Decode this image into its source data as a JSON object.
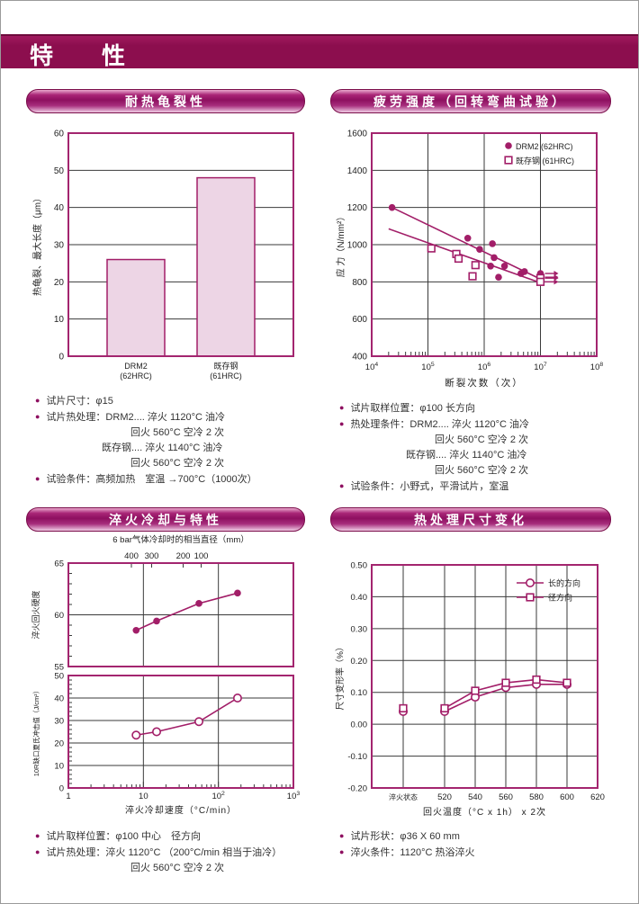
{
  "page": {
    "header_title": "特　性"
  },
  "colors": {
    "brand_dark": "#8C0E4E",
    "pill_mid": "#8E1060",
    "pill_light": "#E9A9CD",
    "series": "#A21E68",
    "plot_border": "#A3256F",
    "bar_fill": "#EDD5E5",
    "grid": "#3a3a3a",
    "text": "#2b2b2b"
  },
  "panels": {
    "heat_crack": {
      "title": "耐热龟裂性",
      "bullets": [
        {
          "b": 1,
          "i": 0,
          "t": "试片尺寸：φ15"
        },
        {
          "b": 1,
          "i": 0,
          "t": "试片热处理：DRM2.... 淬火 1120°C 油冷"
        },
        {
          "b": 0,
          "i": 2,
          "t": "回火  560°C 空冷 2 次"
        },
        {
          "b": 0,
          "i": 1,
          "t": "既存钢.... 淬火 1140°C 油冷"
        },
        {
          "b": 0,
          "i": 2,
          "t": "回火  560°C 空冷 2 次"
        },
        {
          "b": 1,
          "i": 0,
          "t": "试验条件：高频加热　室温 →700°C（1000次）"
        }
      ]
    },
    "fatigue": {
      "title": "疲劳强度（回转弯曲试验）",
      "bullets": [
        {
          "b": 1,
          "i": 0,
          "t": "试片取样位置：φ100 长方向"
        },
        {
          "b": 1,
          "i": 0,
          "t": "热处理条件：DRM2.... 淬火 1120°C 油冷"
        },
        {
          "b": 0,
          "i": 2,
          "t": "回火  560°C 空冷 2 次"
        },
        {
          "b": 0,
          "i": 1,
          "t": "既存钢.... 淬火 1140°C 油冷"
        },
        {
          "b": 0,
          "i": 2,
          "t": "回火  560°C 空冷 2 次"
        },
        {
          "b": 1,
          "i": 0,
          "t": "试验条件：小野式，平滑试片，室温"
        }
      ]
    },
    "quench": {
      "title": "淬火冷却与特性",
      "bullets": [
        {
          "b": 1,
          "i": 0,
          "t": "试片取样位置：φ100 中心　径方向"
        },
        {
          "b": 1,
          "i": 0,
          "t": "试片热处理：淬火 1120°C （200°C/min 相当于油冷）"
        },
        {
          "b": 0,
          "i": 2,
          "t": "回火  560°C 空冷 2 次"
        }
      ]
    },
    "dimension": {
      "title": "热处理尺寸变化",
      "bullets": [
        {
          "b": 1,
          "i": 0,
          "t": "试片形状：φ36 X 60 mm"
        },
        {
          "b": 1,
          "i": 0,
          "t": "淬火条件：1120°C 热浴淬火"
        }
      ]
    }
  },
  "chart_data": [
    {
      "id": "heat_crack_bar",
      "type": "bar",
      "categories": [
        [
          "DRM2",
          "(62HRC)"
        ],
        [
          "既存钢",
          "(61HRC)"
        ]
      ],
      "values": [
        26,
        48
      ],
      "ylabel": "热龟裂、最大长度（μm）",
      "ylim": [
        0,
        60
      ],
      "ytick": 10,
      "grid": true
    },
    {
      "id": "fatigue_sn",
      "type": "scatter",
      "xscale": "log",
      "xlim": [
        10000,
        100000000
      ],
      "xticks": [
        {
          "t": "10",
          "e": "4"
        },
        {
          "t": "10",
          "e": "5"
        },
        {
          "t": "10",
          "e": "6"
        },
        {
          "t": "10",
          "e": "7"
        },
        {
          "t": "10",
          "e": "8"
        }
      ],
      "ylim": [
        400,
        1600
      ],
      "ytick": 200,
      "xlabel": "断裂次数（次）",
      "ylabel": "应 力（N/mm²）",
      "legend_position": "top-right",
      "series": [
        {
          "name": "DRM2 (62HRC)",
          "marker": "filled-circle",
          "points": [
            [
              23000,
              1200
            ],
            [
              510000,
              1035
            ],
            [
              830000,
              975
            ],
            [
              1400000,
              1005
            ],
            [
              1500000,
              930
            ],
            [
              1300000,
              885
            ],
            [
              2300000,
              885
            ],
            [
              1800000,
              825
            ],
            [
              4500000,
              845
            ],
            [
              5200000,
              855
            ],
            [
              10000000,
              845
            ],
            [
              10000000,
              825
            ]
          ],
          "runout_points": [
            [
              10000000,
              845
            ],
            [
              10000000,
              825
            ]
          ],
          "trend": [
            [
              23000,
              1200
            ],
            [
              10000000,
              815
            ]
          ]
        },
        {
          "name": "既存钢 (61HRC)",
          "marker": "open-square",
          "points": [
            [
              115000,
              980
            ],
            [
              320000,
              950
            ],
            [
              350000,
              925
            ],
            [
              700000,
              890
            ],
            [
              620000,
              830
            ],
            [
              10000000,
              820
            ],
            [
              10000000,
              800
            ]
          ],
          "runout_points": [
            [
              10000000,
              820
            ],
            [
              10000000,
              800
            ]
          ],
          "trend": [
            [
              20000,
              1085
            ],
            [
              10000000,
              795
            ]
          ]
        }
      ]
    },
    {
      "id": "quench_cooling",
      "type": "line-dual",
      "top_axis": {
        "title": "6 bar气体冷却时的相当直径（mm）",
        "ticks": [
          {
            "label": "400",
            "f": 0.28
          },
          {
            "label": "300",
            "f": 0.37
          },
          {
            "label": "200",
            "f": 0.51
          },
          {
            "label": "100",
            "f": 0.59
          }
        ]
      },
      "xscale": "log",
      "xlim": [
        1,
        1000
      ],
      "xticks": [
        {
          "t": "1"
        },
        {
          "t": "10"
        },
        {
          "t": "10",
          "e": "2"
        },
        {
          "t": "10",
          "e": "3"
        }
      ],
      "xlabel": "淬火冷却速度（°C/min）",
      "subplots": [
        {
          "ylabel": "淬火回火硬度",
          "ylim": [
            55,
            65
          ],
          "yticks": [
            55,
            60,
            65
          ],
          "grid_y": [
            60
          ],
          "marker": "filled-circle",
          "x": [
            8,
            15,
            55,
            180
          ],
          "y": [
            58.5,
            59.4,
            61.1,
            62.1
          ]
        },
        {
          "ylabel": "10R缺口夏氏冲击值（J/cm²）",
          "ylim": [
            0,
            50
          ],
          "yticks": [
            0,
            10,
            20,
            30,
            40,
            50
          ],
          "grid_y": [
            10,
            20,
            30,
            40
          ],
          "marker": "open-circle",
          "x": [
            8,
            15,
            55,
            180
          ],
          "y": [
            23.5,
            25,
            29.5,
            40
          ]
        }
      ]
    },
    {
      "id": "dimension_change",
      "type": "line-category",
      "categories": [
        "淬火状态",
        "520",
        "540",
        "560",
        "580",
        "600",
        "620"
      ],
      "ylim": [
        -0.2,
        0.5
      ],
      "ytick": 0.1,
      "xlabel": "回火温度（°C x 1h） x 2次",
      "ylabel": "尺寸变形率（%）",
      "legend_position": "top-right",
      "series": [
        {
          "name": "长的方向",
          "marker": "open-circle",
          "values": [
            0.04,
            0.04,
            0.085,
            0.115,
            0.125,
            0.125,
            null
          ],
          "isolated_first": true
        },
        {
          "name": "径方向",
          "marker": "open-square",
          "values": [
            0.05,
            0.05,
            0.105,
            0.13,
            0.14,
            0.13,
            null
          ],
          "isolated_first": true
        }
      ]
    }
  ]
}
